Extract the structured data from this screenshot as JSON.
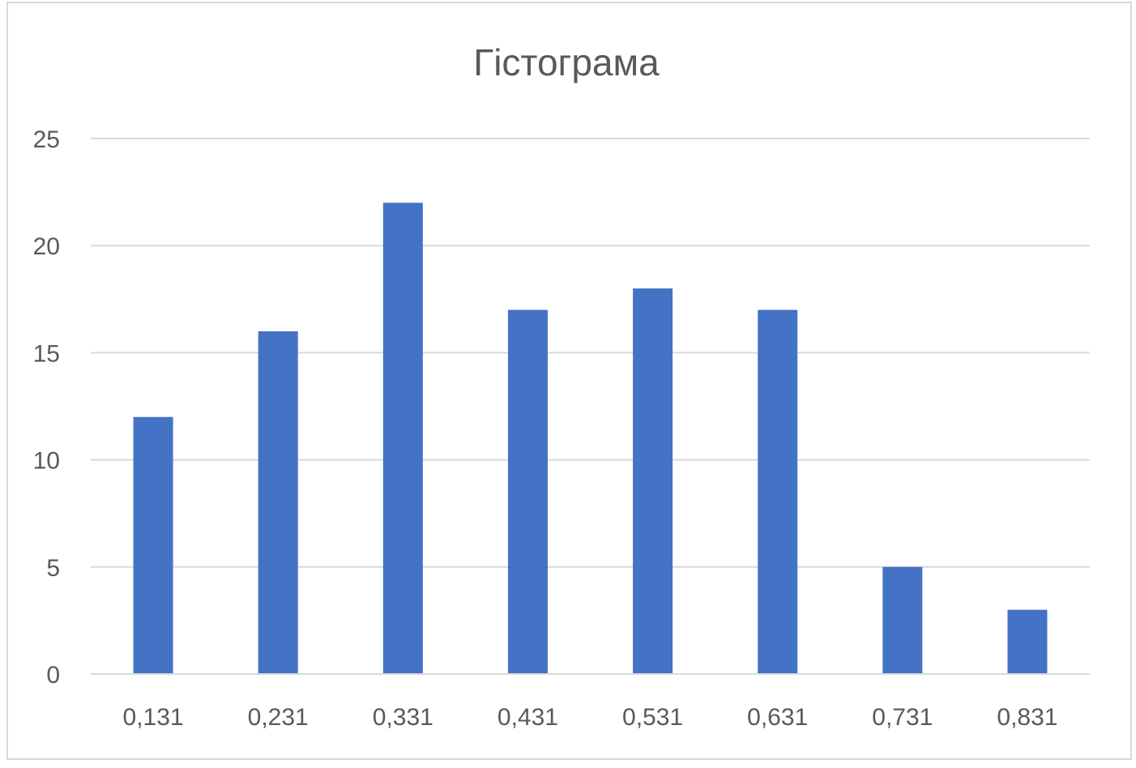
{
  "chart_data": {
    "type": "bar",
    "title": "Гістограма",
    "xlabel": "",
    "ylabel": "",
    "categories": [
      "0,131",
      "0,231",
      "0,331",
      "0,431",
      "0,531",
      "0,631",
      "0,731",
      "0,831"
    ],
    "values": [
      12,
      16,
      22,
      17,
      18,
      17,
      5,
      3
    ],
    "ylim": [
      0,
      25
    ],
    "yticks": [
      "0",
      "5",
      "10",
      "15",
      "20",
      "25"
    ],
    "grid": true,
    "legend": "none",
    "colors": {
      "bar": "#4472c4",
      "grid": "#d9d9d9",
      "text": "#595959",
      "frame": "#d9d9d9"
    }
  }
}
